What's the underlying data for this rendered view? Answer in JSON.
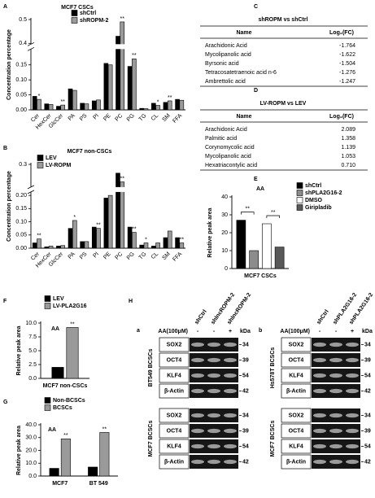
{
  "chart_data": [
    {
      "type": "bar",
      "panel": "A",
      "title": "MCF7 CSCs",
      "ylabel": "Concentration percentage",
      "categories": [
        "Cer",
        "HexCer",
        "GlcCer",
        "PA",
        "PS",
        "PI",
        "PE",
        "PC",
        "PG",
        "TG",
        "CL",
        "SM",
        "FFA"
      ],
      "series": [
        {
          "name": "shCtrl",
          "color": "#000000",
          "values": [
            0.045,
            0.02,
            0.012,
            0.07,
            0.022,
            0.03,
            0.155,
            0.43,
            0.145,
            0.005,
            0.022,
            0.025,
            0.035
          ]
        },
        {
          "name": "shROPM-2",
          "color": "#9a9a9a",
          "values": [
            0.035,
            0.018,
            0.016,
            0.065,
            0.02,
            0.033,
            0.15,
            0.49,
            0.17,
            0.004,
            0.015,
            0.03,
            0.032
          ],
          "significance": [
            "*",
            null,
            "**",
            null,
            null,
            null,
            null,
            "**",
            "**",
            null,
            "*",
            "**",
            null
          ]
        }
      ],
      "ylim": [
        0,
        0.5
      ],
      "ybreak": [
        0.2,
        0.4
      ],
      "yticks": [
        {
          "value": 0,
          "label": "0.00"
        },
        0.05,
        {
          "value": 0.1,
          "label": "0.10"
        },
        0.15,
        0.4,
        0.5
      ],
      "legend": "top-left"
    },
    {
      "type": "bar",
      "panel": "B",
      "title": "MCF7 non-CSCs",
      "ylabel": "Concentration percentage",
      "categories": [
        "Cer",
        "HexCer",
        "GlcCer",
        "PA",
        "PS",
        "PI",
        "PE",
        "PC",
        "PG",
        "TG",
        "CL",
        "SM",
        "FFA"
      ],
      "series": [
        {
          "name": "LEV",
          "color": "#000000",
          "values": [
            0.02,
            0.005,
            0.008,
            0.075,
            0.025,
            0.08,
            0.19,
            0.28,
            0.08,
            0.012,
            0.008,
            0.04,
            0.04
          ]
        },
        {
          "name": "LV-ROPM",
          "color": "#9a9a9a",
          "values": [
            0.035,
            0.008,
            0.01,
            0.105,
            0.025,
            0.075,
            0.2,
            0.26,
            0.06,
            0.02,
            0.02,
            0.065,
            0.02
          ],
          "significance": [
            "**",
            null,
            null,
            "*",
            null,
            "**",
            "*",
            "**",
            "**",
            "*",
            null,
            null,
            "**"
          ]
        }
      ],
      "ylim": [
        0,
        0.3
      ],
      "ybreak": [
        0.21,
        0.25
      ],
      "yticks": [
        {
          "value": 0,
          "label": "0.00"
        },
        0.05,
        {
          "value": 0.1,
          "label": "0.10"
        },
        0.15,
        {
          "value": 0.2,
          "label": "0.20"
        },
        0.3
      ],
      "legend": "top-left"
    },
    {
      "type": "bar",
      "panel": "E",
      "title": "AA",
      "ylabel": "Relative peak area",
      "categories": [
        "MCF7 CSCs"
      ],
      "series": [
        {
          "name": "shCtrl",
          "color": "#000000",
          "values": [
            27
          ]
        },
        {
          "name": "shPLA2G16-2",
          "color": "#8c8c8c",
          "values": [
            10
          ]
        },
        {
          "name": "DMSO",
          "color": "#ffffff",
          "values": [
            25
          ]
        },
        {
          "name": "Giripladib",
          "color": "#595959",
          "values": [
            12
          ]
        }
      ],
      "comparisons": [
        {
          "bars": [
            0,
            1
          ],
          "label": "**"
        },
        {
          "bars": [
            2,
            3
          ],
          "label": "**"
        }
      ],
      "ylim": [
        0,
        40
      ],
      "yticks": [
        0,
        10,
        20,
        30,
        40
      ],
      "legend": "right"
    },
    {
      "type": "bar",
      "panel": "F",
      "title": "AA",
      "ylabel": "Relative peak area",
      "categories": [
        "MCF7 non-CSCs"
      ],
      "series": [
        {
          "name": "LEV",
          "color": "#000000",
          "values": [
            2
          ]
        },
        {
          "name": "LV-PLA2G16",
          "color": "#9a9a9a",
          "values": [
            9.2
          ],
          "significance": [
            "**"
          ]
        }
      ],
      "ylim": [
        0,
        10
      ],
      "yticks": [
        {
          "value": 0,
          "label": "0.0"
        },
        2.5,
        {
          "value": 5,
          "label": "5.0"
        },
        7.5,
        {
          "value": 10,
          "label": "10.0"
        }
      ],
      "legend": "top"
    },
    {
      "type": "bar",
      "panel": "G",
      "title": "AA",
      "ylabel": "Relative peak area",
      "categories": [
        "MCF7",
        "BT 549"
      ],
      "series": [
        {
          "name": "Non-BCSCs",
          "color": "#000000",
          "values": [
            6,
            7
          ]
        },
        {
          "name": "BCSCs",
          "color": "#9a9a9a",
          "values": [
            29,
            34
          ],
          "significance": [
            "**",
            "**"
          ]
        }
      ],
      "ylim": [
        0,
        40
      ],
      "yticks": [
        {
          "value": 0,
          "label": "0.0"
        },
        {
          "value": 10,
          "label": "10.0"
        },
        {
          "value": 20,
          "label": "20.0"
        },
        {
          "value": 30,
          "label": "30.0"
        },
        {
          "value": 40,
          "label": "40.0"
        }
      ],
      "legend": "top"
    }
  ],
  "tables": [
    {
      "panel": "C",
      "title": "shROPM vs shCtrl",
      "columns": [
        "Name",
        "Log₂(FC)"
      ],
      "rows": [
        [
          "Arachidonic Acid",
          "-1.764"
        ],
        [
          "Mycolipanolic acid",
          "-1.622"
        ],
        [
          "Byrsonic acid",
          "-1.504"
        ],
        [
          "Tetracosatetraenoic acid n-6",
          "-1.276"
        ],
        [
          "Ambrettolic acid",
          "-1.247"
        ]
      ]
    },
    {
      "panel": "D",
      "title": "LV-ROPM vs LEV",
      "columns": [
        "Name",
        "Log₂(FC)"
      ],
      "rows": [
        [
          "Arachidonic Acid",
          "2.089"
        ],
        [
          "Palmitic acid",
          "1.358"
        ],
        [
          "Corynomycolic acid",
          "1.139"
        ],
        [
          "Mycolipanolic acid",
          "1.053"
        ],
        [
          "Hexatriacontylic acid",
          "0.710"
        ]
      ]
    }
  ],
  "blots": {
    "panel": "H",
    "treatment": "AA(100μM)",
    "unit": "kDa",
    "groups": [
      {
        "label": "a",
        "lanes": [
          "shCtrl",
          "shlncROPM-2",
          "shlncROPM-2"
        ],
        "treatment_signs": [
          "-",
          "-",
          "+"
        ],
        "blocks": [
          {
            "cells": "BT549 BCSCs",
            "proteins": [
              "SOX2",
              "OCT4",
              "KLF4",
              "β-Actin"
            ],
            "kda": [
              34,
              39,
              54,
              42
            ]
          },
          {
            "cells": "MCF7 BCSCs",
            "proteins": [
              "SOX2",
              "OCT4",
              "KLF4",
              "β-Actin"
            ],
            "kda": [
              34,
              39,
              54,
              42
            ]
          }
        ]
      },
      {
        "label": "b",
        "lanes": [
          "shCtrl",
          "shPLA2G16-2",
          "shPLA2G16-2"
        ],
        "treatment_signs": [
          "-",
          "-",
          "+"
        ],
        "blocks": [
          {
            "cells": "Hs578T BCSCs",
            "proteins": [
              "SOX2",
              "OCT4",
              "KLF4",
              "β-Actin"
            ],
            "kda": [
              34,
              39,
              54,
              42
            ]
          },
          {
            "cells": "MCF7 BCSCs",
            "proteins": [
              "SOX2",
              "OCT4",
              "KLF4",
              "β-Actin"
            ],
            "kda": [
              34,
              39,
              54,
              42
            ]
          }
        ]
      }
    ]
  }
}
